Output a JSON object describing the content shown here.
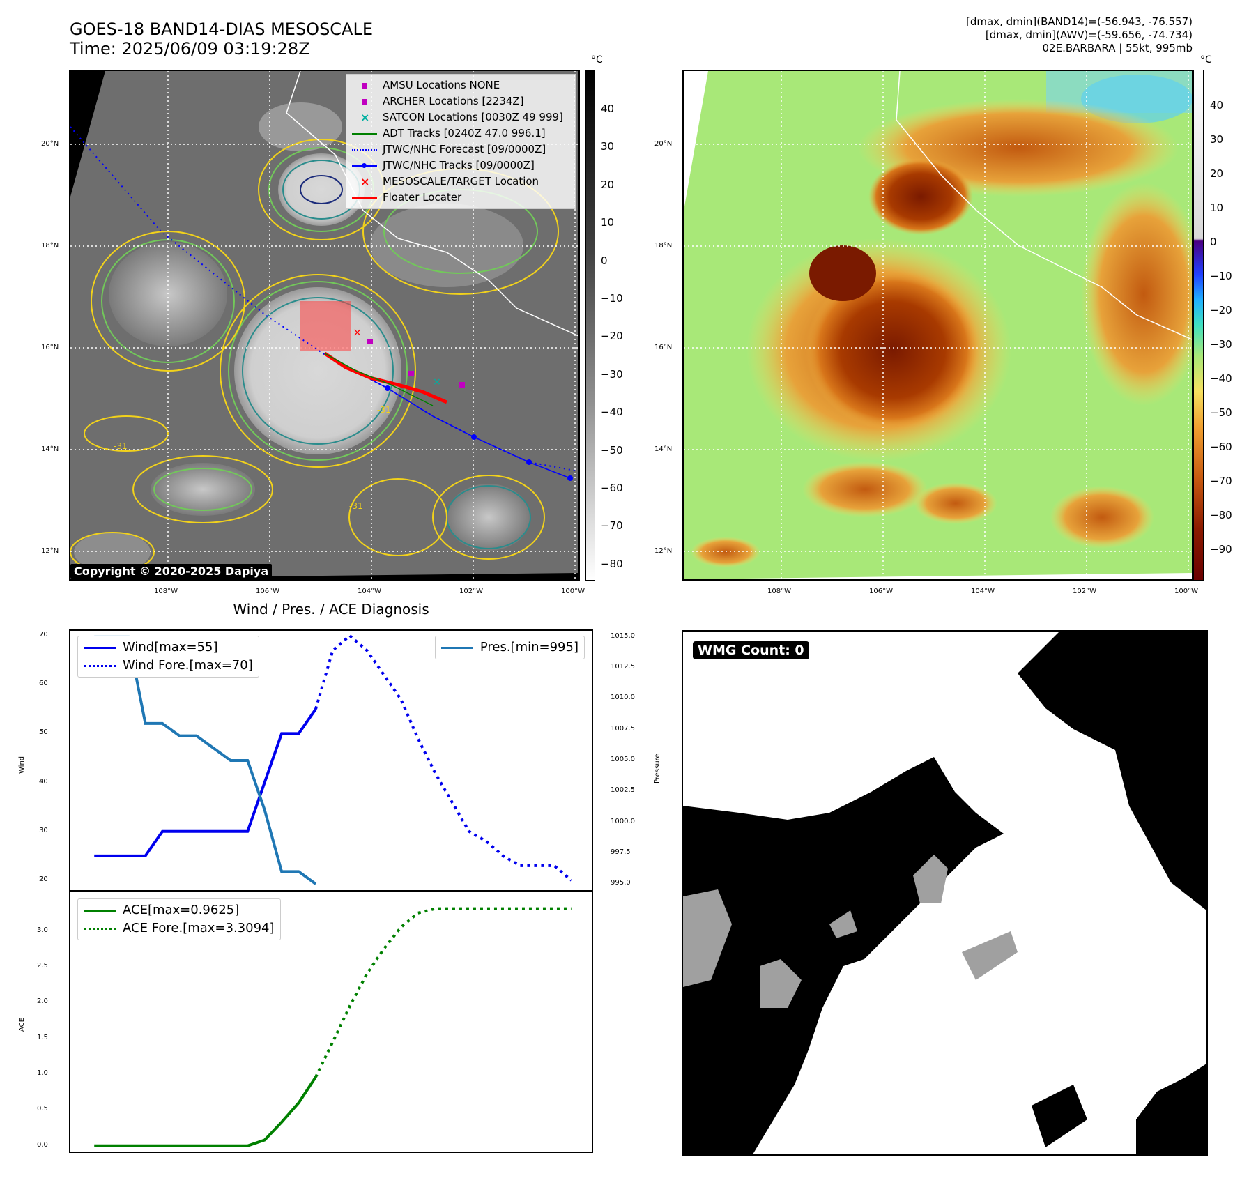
{
  "header": {
    "title_line1": "GOES-18 BAND14-DIAS MESOSCALE",
    "title_line2": "Time: 2025/06/09 03:19:28Z",
    "info_line1": "[dmax, dmin](BAND14)=(-56.943, -76.557)",
    "info_line2": "[dmax, dmin](AWV)=(-59.656, -74.734)",
    "info_line3": "02E.BARBARA | 55kt, 995mb"
  },
  "map": {
    "lon_labels": [
      "108°W",
      "106°W",
      "104°W",
      "102°W",
      "100°W"
    ],
    "lat_labels": [
      "20°N",
      "18°N",
      "16°N",
      "14°N",
      "12°N"
    ],
    "contour_label": "-31",
    "copyright": "Copyright © 2020-2025 Dapiya",
    "legend": [
      {
        "label": "AMSU Locations NONE",
        "marker": "square",
        "color": "#c000c0"
      },
      {
        "label": "ARCHER Locations [2234Z]",
        "marker": "square",
        "color": "#c000c0"
      },
      {
        "label": "SATCON Locations [0030Z 49 999]",
        "marker": "x",
        "color": "#00b0a0"
      },
      {
        "label": "ADT Tracks [0240Z 47.0 996.1]",
        "marker": "line",
        "color": "#008000"
      },
      {
        "label": "JTWC/NHC Forecast [09/0000Z]",
        "marker": "dotted",
        "color": "#0000ff"
      },
      {
        "label": "JTWC/NHC Tracks [09/0000Z]",
        "marker": "dotline",
        "color": "#0000ff"
      },
      {
        "label": "MESOSCALE/TARGET Location",
        "marker": "x",
        "color": "#ff0000"
      },
      {
        "label": "Floater Locater",
        "marker": "line",
        "color": "#ff0000"
      }
    ]
  },
  "colorbar_band14": {
    "unit": "°C",
    "ticks": [
      "40",
      "30",
      "20",
      "10",
      "0",
      "−10",
      "−20",
      "−30",
      "−40",
      "−50",
      "−60",
      "−70",
      "−80"
    ]
  },
  "colorbar_awv": {
    "unit": "°C",
    "ticks": [
      "40",
      "30",
      "20",
      "10",
      "0",
      "−10",
      "−20",
      "−30",
      "−40",
      "−50",
      "−60",
      "−70",
      "−80",
      "−90"
    ]
  },
  "diag": {
    "title": "Wind / Pres. / ACE Diagnosis",
    "wind_ylabel": "Wind",
    "pres_ylabel": "Pressure",
    "ace_ylabel": "ACE",
    "wind_ticks": [
      "70",
      "60",
      "50",
      "40",
      "30",
      "20"
    ],
    "pres_ticks": [
      "1015.0",
      "1012.5",
      "1010.0",
      "1007.5",
      "1005.0",
      "1002.5",
      "1000.0",
      "997.5",
      "995.0"
    ],
    "ace_ticks": [
      "3.0",
      "2.5",
      "2.0",
      "1.5",
      "1.0",
      "0.5",
      "0.0"
    ],
    "legend_wind": "Wind[max=55]",
    "legend_wind_fore": "Wind Fore.[max=70]",
    "legend_pres": "Pres.[min=995]",
    "legend_ace": "ACE[max=0.9625]",
    "legend_ace_fore": "ACE Fore.[max=3.3094]",
    "colors": {
      "wind": "#0000ee",
      "pres": "#1f77b4",
      "ace": "#008000"
    }
  },
  "wmg": {
    "label": "WMG Count: 0"
  },
  "chart_data": [
    {
      "type": "line",
      "title": "Wind / Pres. / ACE Diagnosis",
      "ylabel": "Wind",
      "ylim": [
        18,
        71
      ],
      "series": [
        {
          "name": "Wind[max=55]",
          "x": [
            0,
            1,
            2,
            3,
            4,
            5,
            6,
            7,
            8,
            9,
            10,
            11,
            12,
            13
          ],
          "values": [
            25,
            25,
            25,
            25,
            30,
            30,
            30,
            30,
            30,
            30,
            40,
            50,
            50,
            55
          ]
        },
        {
          "name": "Wind Fore.[max=70]",
          "x": [
            13,
            14,
            15,
            16,
            17,
            18,
            19,
            20,
            21,
            22,
            23,
            24,
            25,
            26,
            27,
            28
          ],
          "values": [
            55,
            67,
            70,
            67,
            62,
            57,
            49,
            42,
            36,
            30,
            28,
            25,
            23,
            23,
            23,
            20
          ]
        }
      ]
    },
    {
      "type": "line",
      "ylabel": "Pressure",
      "ylim": [
        994.5,
        1015.5
      ],
      "series": [
        {
          "name": "Pres.[min=995]",
          "x": [
            0,
            1,
            2,
            3,
            4,
            5,
            6,
            7,
            8,
            9,
            10,
            11,
            12,
            13
          ],
          "values": [
            1015,
            1015,
            1015,
            1008,
            1008,
            1007,
            1007,
            1006,
            1005,
            1005,
            1001,
            996,
            996,
            995
          ]
        }
      ]
    },
    {
      "type": "line",
      "ylabel": "ACE",
      "ylim": [
        -0.08,
        3.55
      ],
      "series": [
        {
          "name": "ACE[max=0.9625]",
          "x": [
            0,
            1,
            2,
            3,
            4,
            5,
            6,
            7,
            8,
            9,
            10,
            11,
            12,
            13
          ],
          "values": [
            0,
            0,
            0,
            0,
            0,
            0,
            0,
            0,
            0,
            0,
            0.08,
            0.33,
            0.6,
            0.96
          ]
        },
        {
          "name": "ACE Fore.[max=3.3094]",
          "x": [
            13,
            14,
            15,
            16,
            17,
            18,
            19,
            20,
            21,
            22,
            23,
            24,
            25,
            26,
            27,
            28
          ],
          "values": [
            0.96,
            1.45,
            1.95,
            2.4,
            2.75,
            3.05,
            3.25,
            3.31,
            3.31,
            3.31,
            3.31,
            3.31,
            3.31,
            3.31,
            3.31,
            3.31
          ]
        }
      ]
    }
  ]
}
